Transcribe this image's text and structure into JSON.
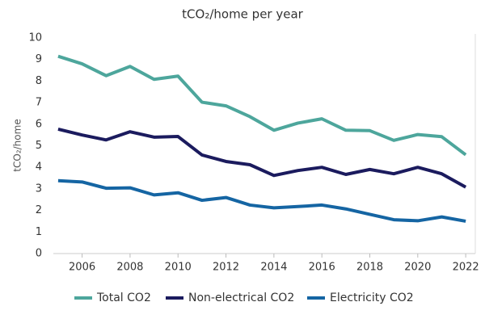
{
  "chart_data": {
    "type": "line",
    "title": "tCO₂/home per year",
    "y_label": "tCO₂/home",
    "x": [
      2005,
      2006,
      2007,
      2008,
      2009,
      2010,
      2011,
      2012,
      2013,
      2014,
      2015,
      2016,
      2017,
      2018,
      2019,
      2020,
      2021,
      2022
    ],
    "series": [
      {
        "name": "Total CO2",
        "color": "#4da69c",
        "values": [
          9.15,
          8.8,
          8.25,
          8.68,
          8.08,
          8.23,
          7.02,
          6.85,
          6.35,
          5.72,
          6.05,
          6.25,
          5.72,
          5.7,
          5.25,
          5.52,
          5.42,
          4.58
        ]
      },
      {
        "name": "Non-electrical CO2",
        "color": "#1b1b5e",
        "values": [
          5.77,
          5.5,
          5.27,
          5.65,
          5.4,
          5.43,
          4.57,
          4.27,
          4.12,
          3.62,
          3.85,
          4.0,
          3.67,
          3.9,
          3.7,
          4.0,
          3.7,
          3.08
        ]
      },
      {
        "name": "Electricity CO2",
        "color": "#1565a3",
        "values": [
          3.38,
          3.32,
          3.03,
          3.05,
          2.72,
          2.82,
          2.47,
          2.6,
          2.25,
          2.12,
          2.18,
          2.25,
          2.07,
          1.82,
          1.57,
          1.52,
          1.7,
          1.5
        ]
      }
    ],
    "xlim": [
      2004.8,
      2022.4
    ],
    "xticks": [
      2006,
      2008,
      2010,
      2012,
      2014,
      2016,
      2018,
      2020,
      2022
    ],
    "ylim": [
      0,
      10
    ],
    "yticks": [
      0,
      1,
      2,
      3,
      4,
      5,
      6,
      7,
      8,
      9,
      10
    ],
    "legend": "bottom"
  }
}
